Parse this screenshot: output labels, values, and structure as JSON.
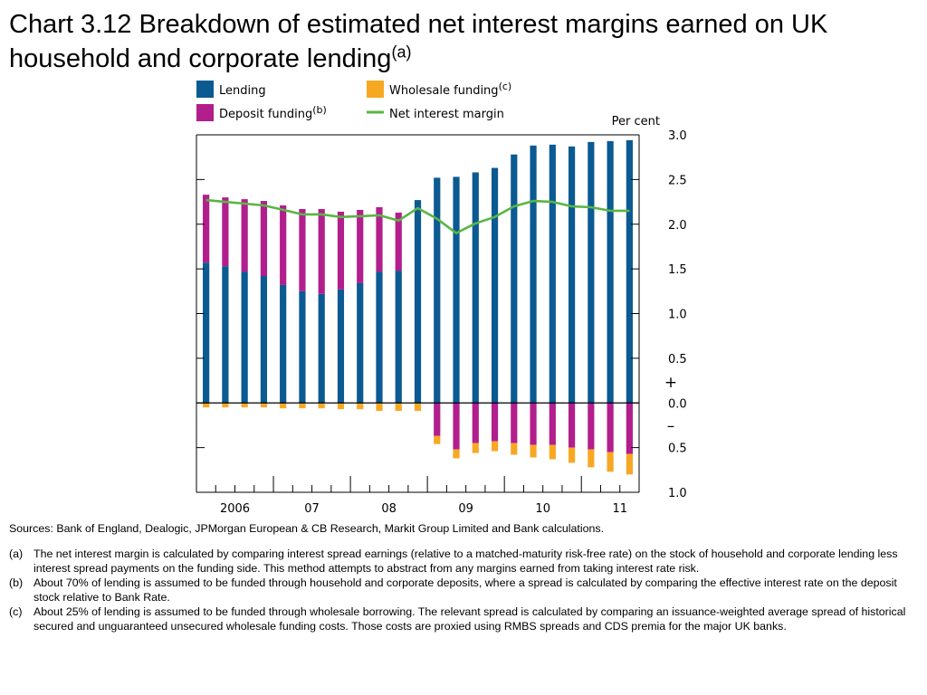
{
  "title": {
    "main": "Chart 3.12  Breakdown of estimated net interest margins earned on UK household and corporate lending",
    "superscript": "(a)"
  },
  "chart_data": {
    "type": "bar",
    "stacked": true,
    "unit_label": "Per cent",
    "ylim": [
      -1.0,
      3.0
    ],
    "y_ticks": [
      {
        "value": 3.0,
        "label": "3.0"
      },
      {
        "value": 2.5,
        "label": "2.5"
      },
      {
        "value": 2.0,
        "label": "2.0"
      },
      {
        "value": 1.5,
        "label": "1.5"
      },
      {
        "value": 1.0,
        "label": "1.0"
      },
      {
        "value": 0.5,
        "label": "0.5"
      },
      {
        "value": 0.0,
        "label": "0.0"
      },
      {
        "value": -0.5,
        "label": "0.5"
      },
      {
        "value": -1.0,
        "label": "1.0"
      }
    ],
    "sign_plus": "+",
    "sign_minus": "–",
    "x_labels": [
      {
        "label": "2006",
        "index": 1.5
      },
      {
        "label": "07",
        "index": 5.5
      },
      {
        "label": "08",
        "index": 9.5
      },
      {
        "label": "09",
        "index": 13.5
      },
      {
        "label": "10",
        "index": 17.5
      },
      {
        "label": "11",
        "index": 21.5
      }
    ],
    "n_periods": 23,
    "legend_position": "top-left",
    "series": [
      {
        "name": "Lending",
        "color": "#0b5a92",
        "values": [
          1.57,
          1.53,
          1.47,
          1.42,
          1.32,
          1.25,
          1.22,
          1.27,
          1.34,
          1.47,
          1.48,
          2.27,
          2.52,
          2.53,
          2.58,
          2.63,
          2.78,
          2.88,
          2.89,
          2.87,
          2.92,
          2.93,
          2.94
        ]
      },
      {
        "name": "Deposit funding",
        "superscript": "(b)",
        "color": "#b21e8c",
        "values": [
          0.76,
          0.77,
          0.81,
          0.84,
          0.89,
          0.92,
          0.95,
          0.87,
          0.82,
          0.72,
          0.65,
          0.0,
          -0.37,
          -0.52,
          -0.45,
          -0.43,
          -0.45,
          -0.47,
          -0.47,
          -0.5,
          -0.52,
          -0.55,
          -0.57
        ]
      },
      {
        "name": "Wholesale funding",
        "superscript": "(c)",
        "color": "#f7a823",
        "values": [
          -0.05,
          -0.05,
          -0.05,
          -0.05,
          -0.06,
          -0.06,
          -0.06,
          -0.07,
          -0.07,
          -0.09,
          -0.09,
          -0.09,
          -0.09,
          -0.1,
          -0.11,
          -0.11,
          -0.13,
          -0.14,
          -0.16,
          -0.17,
          -0.2,
          -0.22,
          -0.23
        ]
      },
      {
        "name": "Net interest margin",
        "color": "#5ab545",
        "type": "line",
        "values": [
          2.27,
          2.25,
          2.23,
          2.21,
          2.16,
          2.11,
          2.11,
          2.08,
          2.09,
          2.1,
          2.04,
          2.18,
          2.06,
          1.9,
          2.01,
          2.08,
          2.2,
          2.26,
          2.25,
          2.2,
          2.19,
          2.15,
          2.15
        ]
      }
    ]
  },
  "notes": {
    "sources": "Sources:  Bank of England, Dealogic, JPMorgan European & CB Research, Markit Group Limited and Bank calculations.",
    "footnotes": [
      {
        "mark": "(a)",
        "text": "The net interest margin is calculated by comparing interest spread earnings (relative to a matched-maturity risk-free rate) on the stock of household and corporate lending less interest spread payments on the funding side.  This method attempts to abstract from any margins earned from taking interest rate risk."
      },
      {
        "mark": "(b)",
        "text": "About 70% of lending is assumed to be funded through household and corporate deposits, where a spread is calculated by comparing the effective interest rate on the deposit stock relative to Bank Rate."
      },
      {
        "mark": "(c)",
        "text": "About 25% of lending is assumed to be funded through wholesale borrowing.  The relevant spread is calculated by comparing an issuance-weighted average spread of historical secured and unguaranteed unsecured wholesale funding costs.  Those costs are proxied using RMBS spreads and CDS premia for the major UK banks."
      }
    ]
  }
}
